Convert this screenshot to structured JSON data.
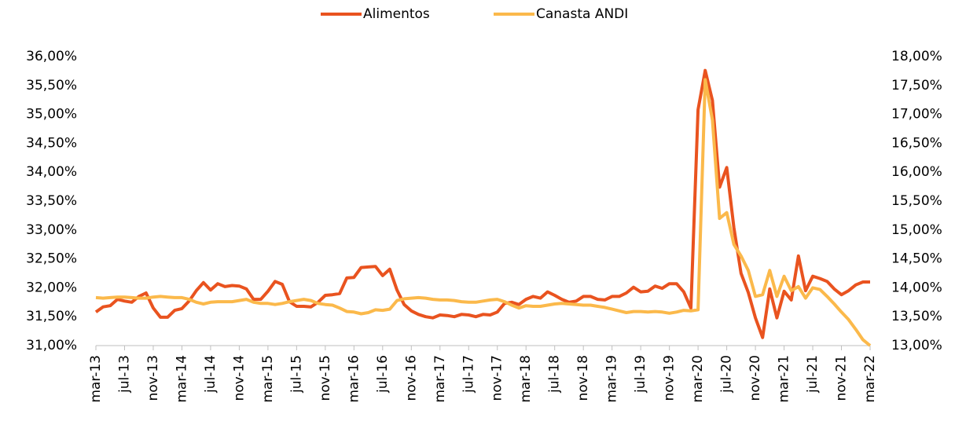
{
  "chart_data": {
    "type": "line",
    "categories": [
      "mar-13",
      null,
      null,
      null,
      "jul-13",
      null,
      null,
      null,
      "nov-13",
      null,
      null,
      null,
      "mar-14",
      null,
      null,
      null,
      "jul-14",
      null,
      null,
      null,
      "nov-14",
      null,
      null,
      null,
      "mar-15",
      null,
      null,
      null,
      "jul-15",
      null,
      null,
      null,
      "nov-15",
      null,
      null,
      null,
      "mar-16",
      null,
      null,
      null,
      "jul-16",
      null,
      null,
      null,
      "nov-16",
      null,
      null,
      null,
      "mar-17",
      null,
      null,
      null,
      "jul-17",
      null,
      null,
      null,
      "nov-17",
      null,
      null,
      null,
      "mar-18",
      null,
      null,
      null,
      "jul-18",
      null,
      null,
      null,
      "nov-18",
      null,
      null,
      null,
      "mar-19",
      null,
      null,
      null,
      "jul-19",
      null,
      null,
      null,
      "nov-19",
      null,
      null,
      null,
      "mar-20",
      null,
      null,
      null,
      "jul-20",
      null,
      null,
      null,
      "nov-20",
      null,
      null,
      null,
      "mar-21",
      null,
      null,
      null,
      "jul-21",
      null,
      null,
      null,
      "nov-21",
      null,
      null,
      null,
      "mar-22"
    ],
    "series": [
      {
        "name": "Alimentos",
        "color": "#e9531f",
        "axis": "y",
        "values": [
          31.58,
          31.67,
          31.69,
          31.8,
          31.77,
          31.75,
          31.85,
          31.91,
          31.65,
          31.49,
          31.49,
          31.61,
          31.64,
          31.77,
          31.95,
          32.09,
          31.96,
          32.07,
          32.02,
          32.04,
          32.03,
          31.98,
          31.8,
          31.8,
          31.94,
          32.11,
          32.06,
          31.76,
          31.68,
          31.68,
          31.67,
          31.75,
          31.87,
          31.88,
          31.9,
          32.17,
          32.18,
          32.35,
          32.36,
          32.37,
          32.21,
          32.32,
          31.96,
          31.71,
          31.6,
          31.54,
          31.5,
          31.48,
          31.53,
          31.52,
          31.5,
          31.54,
          31.53,
          31.5,
          31.54,
          31.53,
          31.58,
          31.73,
          31.75,
          31.71,
          31.8,
          31.85,
          31.82,
          31.93,
          31.87,
          31.8,
          31.75,
          31.77,
          31.85,
          31.85,
          31.8,
          31.79,
          31.85,
          31.85,
          31.91,
          32.01,
          31.93,
          31.94,
          32.03,
          31.99,
          32.07,
          32.07,
          31.93,
          31.65,
          35.08,
          35.76,
          35.24,
          33.74,
          34.08,
          33.04,
          32.25,
          31.92,
          31.48,
          31.14,
          31.98,
          31.48,
          31.94,
          31.79,
          32.55,
          31.95,
          32.2,
          32.16,
          32.11,
          31.98,
          31.88,
          31.95,
          32.05,
          32.1,
          32.1
        ]
      },
      {
        "name": "Canasta ANDI",
        "color": "#fbb94b",
        "axis": "y2",
        "values": [
          13.83,
          13.82,
          13.83,
          13.84,
          13.84,
          13.83,
          13.82,
          13.82,
          13.84,
          13.85,
          13.84,
          13.83,
          13.83,
          13.8,
          13.75,
          13.72,
          13.75,
          13.76,
          13.76,
          13.76,
          13.78,
          13.8,
          13.75,
          13.73,
          13.73,
          13.71,
          13.73,
          13.76,
          13.78,
          13.8,
          13.78,
          13.73,
          13.71,
          13.7,
          13.65,
          13.59,
          13.58,
          13.55,
          13.57,
          13.62,
          13.61,
          13.63,
          13.78,
          13.81,
          13.82,
          13.83,
          13.82,
          13.8,
          13.79,
          13.79,
          13.78,
          13.76,
          13.75,
          13.75,
          13.77,
          13.79,
          13.8,
          13.76,
          13.7,
          13.65,
          13.69,
          13.68,
          13.68,
          13.7,
          13.72,
          13.73,
          13.72,
          13.71,
          13.7,
          13.7,
          13.68,
          13.66,
          13.63,
          13.6,
          13.57,
          13.59,
          13.59,
          13.58,
          13.59,
          13.58,
          13.56,
          13.58,
          13.61,
          13.6,
          13.62,
          17.6,
          16.9,
          15.2,
          15.3,
          14.75,
          14.55,
          14.3,
          13.85,
          13.88,
          14.3,
          13.85,
          14.2,
          13.95,
          14.02,
          13.82,
          14.0,
          13.97,
          13.85,
          13.72,
          13.58,
          13.45,
          13.28,
          13.1,
          13.0
        ]
      }
    ],
    "ylim": [
      31,
      36
    ],
    "yticks": [
      {
        "value": 31,
        "label": "31,00%"
      },
      {
        "value": 31.5,
        "label": "31,50%"
      },
      {
        "value": 32,
        "label": "32,00%"
      },
      {
        "value": 32.5,
        "label": "32,50%"
      },
      {
        "value": 33,
        "label": "33,00%"
      },
      {
        "value": 33.5,
        "label": "33,50%"
      },
      {
        "value": 34,
        "label": "34,00%"
      },
      {
        "value": 34.5,
        "label": "34,50%"
      },
      {
        "value": 35,
        "label": "35,00%"
      },
      {
        "value": 35.5,
        "label": "35,50%"
      },
      {
        "value": 36,
        "label": "36,00%"
      }
    ],
    "y2lim": [
      13,
      18
    ],
    "y2ticks": [
      {
        "value": 13,
        "label": "13,00%"
      },
      {
        "value": 13.5,
        "label": "13,50%"
      },
      {
        "value": 14,
        "label": "14,00%"
      },
      {
        "value": 14.5,
        "label": "14,50%"
      },
      {
        "value": 15,
        "label": "15,00%"
      },
      {
        "value": 15.5,
        "label": "15,50%"
      },
      {
        "value": 16,
        "label": "16,00%"
      },
      {
        "value": 16.5,
        "label": "16,50%"
      },
      {
        "value": 17,
        "label": "17,00%"
      },
      {
        "value": 17.5,
        "label": "17,50%"
      },
      {
        "value": 18,
        "label": "18,00%"
      }
    ],
    "grid": false,
    "legend": "top"
  }
}
